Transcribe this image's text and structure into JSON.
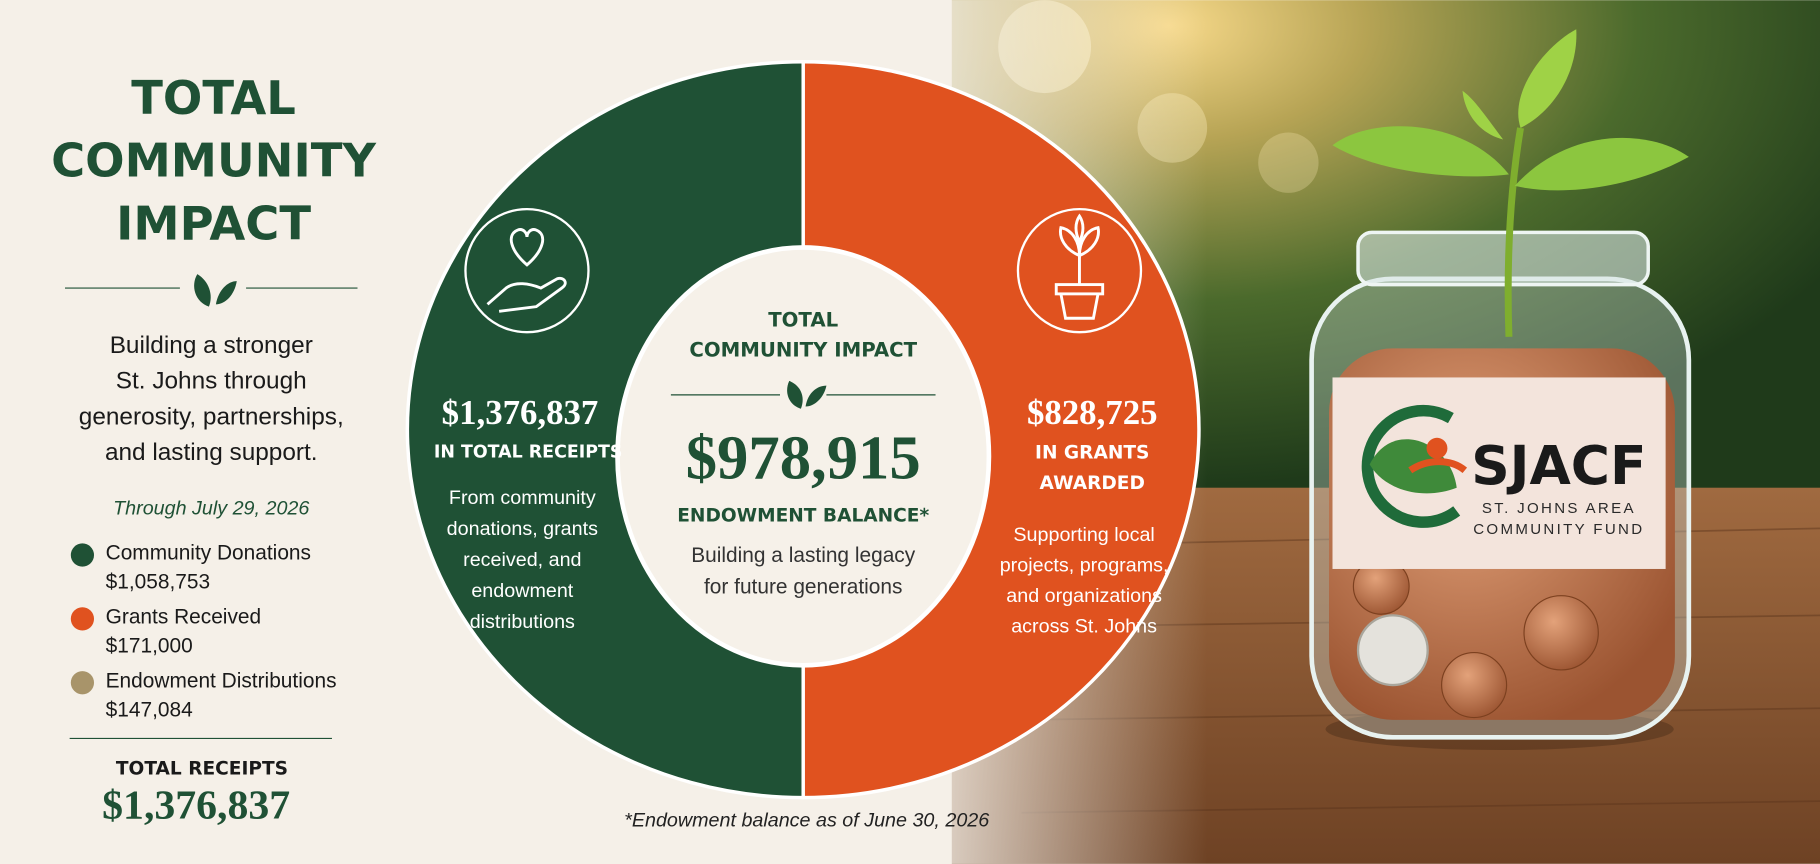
{
  "left_panel": {
    "title_lines": [
      "TOTAL",
      "COMMUNITY",
      "IMPACT"
    ],
    "tagline_lines": [
      "Building a stronger",
      "St. Johns through",
      "generosity, partnerships,",
      "and lasting support."
    ],
    "as_of": "Through July 29, 2026",
    "legend": [
      {
        "label": "Community Donations",
        "amount": "$1,058,753",
        "color": "#1f5135"
      },
      {
        "label": "Grants Received",
        "amount": "$171,000",
        "color": "#e0521f"
      },
      {
        "label": "Endowment Distributions",
        "amount": "$147,084",
        "color": "#a8946a"
      }
    ],
    "total_label": "TOTAL RECEIPTS",
    "total_value": "$1,376,837"
  },
  "receipts_panel": {
    "amount": "$1,376,837",
    "caption": "IN TOTAL RECEIPTS",
    "description_lines": [
      "From community",
      "donations, grants",
      "received, and",
      "endowment",
      "distributions"
    ]
  },
  "center_panel": {
    "title_lines": [
      "TOTAL",
      "COMMUNITY IMPACT"
    ],
    "amount": "$978,915",
    "caption": "ENDOWMENT BALANCE*",
    "description_lines": [
      "Building a lasting legacy",
      "for future generations"
    ]
  },
  "grants_panel": {
    "amount": "$828,725",
    "caption_lines": [
      "IN GRANTS",
      "AWARDED"
    ],
    "description_lines": [
      "Supporting local",
      "projects, programs,",
      "and organizations",
      "across St. Johns"
    ]
  },
  "footnote": "*Endowment balance as of June 30, 2026",
  "logo": {
    "name": "SJACF",
    "subtitle_lines": [
      "ST. JOHNS AREA",
      "COMMUNITY FUND"
    ]
  }
}
